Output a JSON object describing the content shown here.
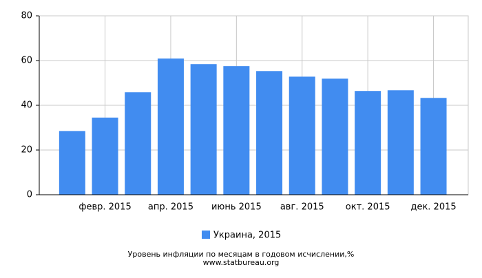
{
  "chart_data": {
    "type": "bar",
    "title": "Уровень инфляции по месяцам в годовом исчислении,%",
    "source": "www.statbureau.org",
    "categories": [
      null,
      "февр. 2015",
      null,
      "апр. 2015",
      null,
      "июнь 2015",
      null,
      "авг. 2015",
      null,
      "окт. 2015",
      null,
      "дек. 2015"
    ],
    "series": [
      {
        "name": "Украина, 2015",
        "color": "#418cf0",
        "values": [
          28.5,
          34.5,
          45.8,
          60.9,
          58.4,
          57.5,
          55.3,
          52.8,
          51.9,
          46.4,
          46.7,
          43.3
        ]
      }
    ],
    "ylim": [
      0,
      80
    ],
    "yticks": [
      0,
      20,
      40,
      60,
      80
    ],
    "grid": true
  }
}
